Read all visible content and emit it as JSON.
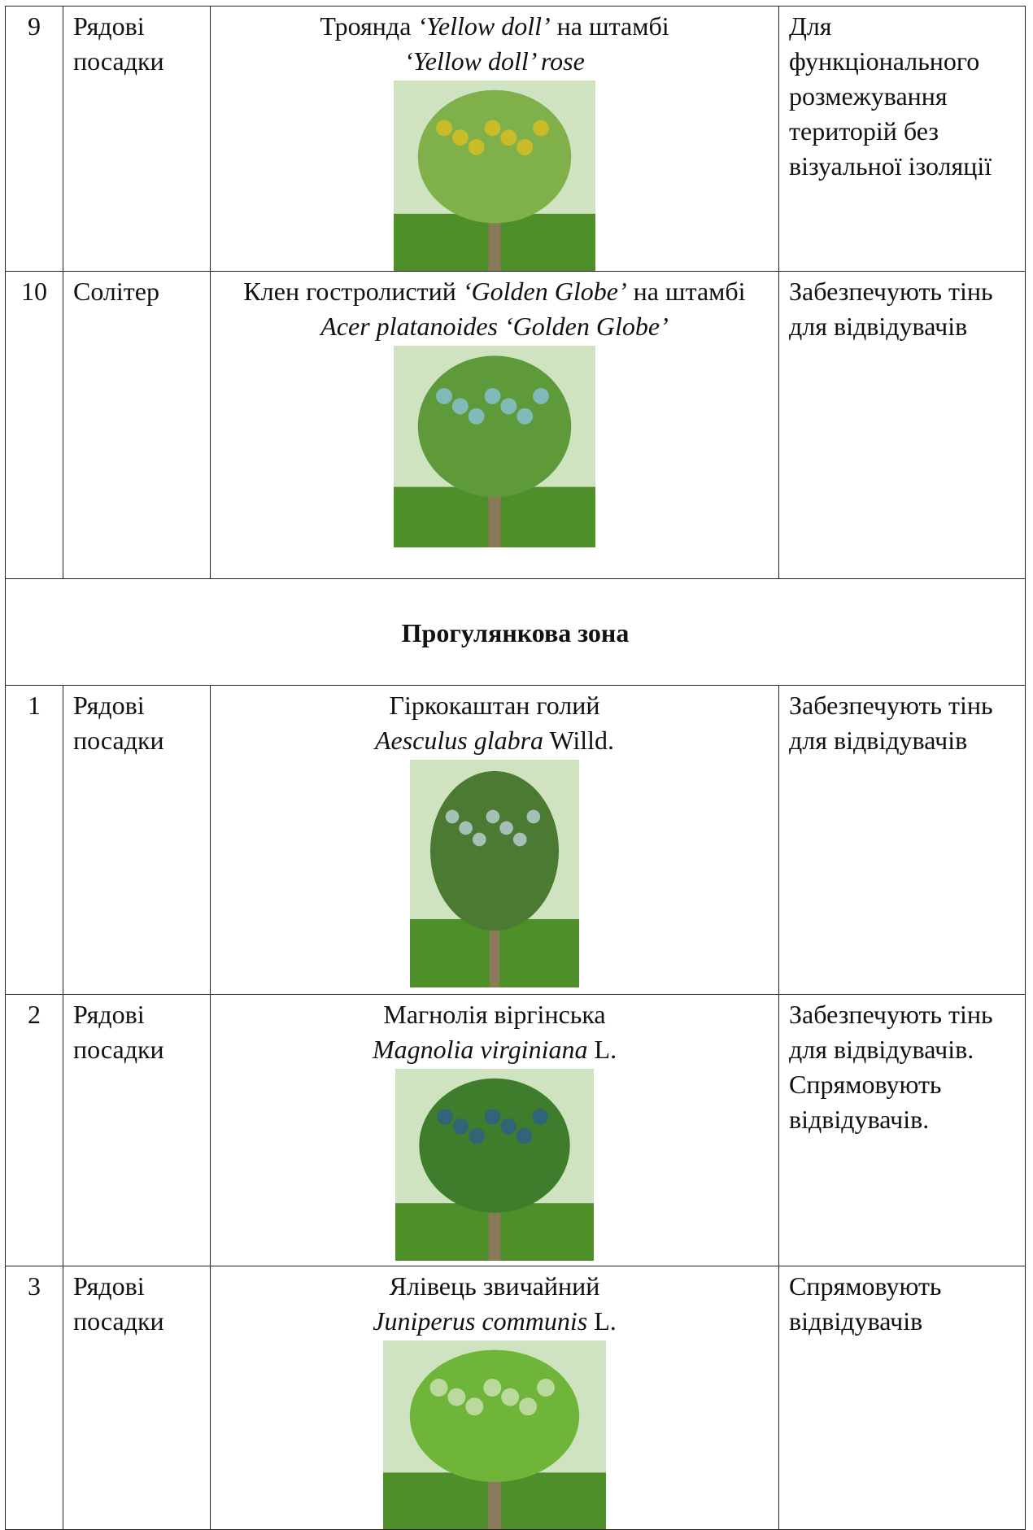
{
  "table": {
    "rows": [
      {
        "number": "9",
        "planting": "Рядові посадки",
        "name": [
          [
            {
              "text": "Троянда "
            },
            {
              "text": "‘Yellow doll’",
              "italic": true
            },
            {
              "text": " на штамбі"
            }
          ],
          [
            {
              "text": "‘Yellow doll’ rose",
              "italic": true
            }
          ]
        ],
        "purpose": "Для функціонального розмежування територій без візуальної ізоляції"
      },
      {
        "number": "10",
        "planting": "Солітер",
        "name": [
          [
            {
              "text": "Клен гостролистий "
            },
            {
              "text": "‘Golden Globe’",
              "italic": true
            },
            {
              "text": " на штамбі"
            }
          ],
          [
            {
              "text": "Acer platanoides ‘Golden Globe’",
              "italic": true
            }
          ]
        ],
        "purpose": "Забезпечують тінь для відвідувачів"
      },
      {
        "section": "Прогулянкова зона"
      },
      {
        "number": "1",
        "planting": "Рядові посадки",
        "name": [
          [
            {
              "text": "Гіркокаштан голий"
            }
          ],
          [
            {
              "text": "Aesculus glabra",
              "italic": true
            },
            {
              "text": " Willd."
            }
          ]
        ],
        "purpose": "Забезпечують тінь для відвідувачів"
      },
      {
        "number": "2",
        "planting": "Рядові посадки",
        "name": [
          [
            {
              "text": "Магнолія віргінська"
            }
          ],
          [
            {
              "text": "Magnolia virginiana",
              "italic": true
            },
            {
              "text": " L."
            }
          ]
        ],
        "purpose": "Забезпечують тінь для відвідувачів. Спрямовують відвідувачів."
      },
      {
        "number": "3",
        "planting": "Рядові посадки",
        "name": [
          [
            {
              "text": "Ялівець звичайний"
            }
          ],
          [
            {
              "text": "Juniperus communis",
              "italic": true
            },
            {
              "text": " L."
            }
          ]
        ],
        "purpose": "Спрямовують відвідувачів"
      }
    ]
  }
}
